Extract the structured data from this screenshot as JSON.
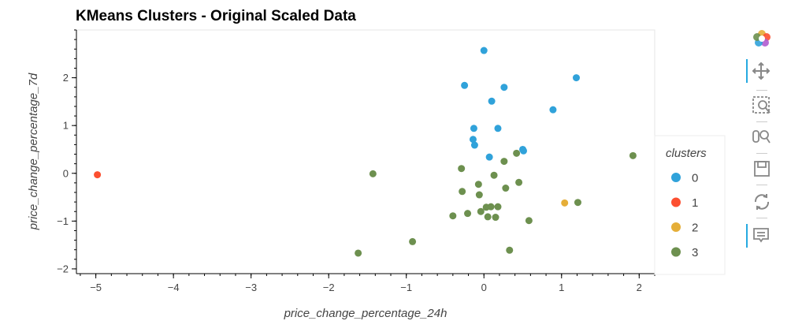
{
  "chart_data": {
    "type": "scatter",
    "title": "KMeans Clusters - Original Scaled Data",
    "xlabel": "price_change_percentage_24h",
    "ylabel": "price_change_percentage_7d",
    "xlim": [
      -5.25,
      2.2
    ],
    "ylim": [
      -2.1,
      3.0
    ],
    "xticks": [
      -5,
      -4,
      -3,
      -2,
      -1,
      0,
      1,
      2
    ],
    "yticks": [
      -2,
      -1,
      0,
      1,
      2
    ],
    "tick_labels_x": [
      "−5",
      "−4",
      "−3",
      "−2",
      "−1",
      "0",
      "1",
      "2"
    ],
    "tick_labels_y": [
      "−2",
      "−1",
      "0",
      "1",
      "2"
    ],
    "grid": false,
    "legend": {
      "title": "clusters",
      "placement": "right"
    },
    "series": [
      {
        "name": "0",
        "color": "#30a2da",
        "points": [
          [
            0.0,
            2.57
          ],
          [
            1.19,
            2.0
          ],
          [
            -0.25,
            1.84
          ],
          [
            0.26,
            1.8
          ],
          [
            0.1,
            1.51
          ],
          [
            0.89,
            1.33
          ],
          [
            -0.13,
            0.94
          ],
          [
            0.18,
            0.94
          ],
          [
            -0.14,
            0.71
          ],
          [
            -0.12,
            0.59
          ],
          [
            0.5,
            0.5
          ],
          [
            0.51,
            0.47
          ],
          [
            0.07,
            0.34
          ]
        ]
      },
      {
        "name": "1",
        "color": "#fc4f30",
        "points": [
          [
            -4.98,
            -0.03
          ]
        ]
      },
      {
        "name": "2",
        "color": "#e5ae38",
        "points": [
          [
            1.04,
            -0.62
          ]
        ]
      },
      {
        "name": "3",
        "color": "#6d904f",
        "points": [
          [
            1.92,
            0.37
          ],
          [
            -1.43,
            -0.01
          ],
          [
            0.42,
            0.42
          ],
          [
            0.26,
            0.25
          ],
          [
            -0.29,
            0.1
          ],
          [
            0.13,
            -0.04
          ],
          [
            -0.07,
            -0.23
          ],
          [
            0.45,
            -0.19
          ],
          [
            -0.28,
            -0.38
          ],
          [
            0.28,
            -0.31
          ],
          [
            -0.06,
            -0.45
          ],
          [
            0.03,
            -0.71
          ],
          [
            0.09,
            -0.7
          ],
          [
            0.18,
            -0.7
          ],
          [
            1.21,
            -0.61
          ],
          [
            -0.04,
            -0.8
          ],
          [
            -0.21,
            -0.84
          ],
          [
            -0.4,
            -0.89
          ],
          [
            0.05,
            -0.91
          ],
          [
            0.15,
            -0.92
          ],
          [
            0.58,
            -0.99
          ],
          [
            -0.92,
            -1.43
          ],
          [
            0.33,
            -1.61
          ],
          [
            -1.62,
            -1.67
          ]
        ]
      }
    ]
  },
  "toolbar": {
    "tools": [
      {
        "name": "bokeh-logo-icon",
        "active": false
      },
      {
        "name": "pan-icon",
        "active": true
      },
      {
        "name": "box-zoom-icon",
        "active": false
      },
      {
        "name": "wheel-zoom-icon",
        "active": false
      },
      {
        "name": "save-icon",
        "active": false
      },
      {
        "name": "reset-icon",
        "active": false
      },
      {
        "name": "hover-icon",
        "active": true
      }
    ]
  }
}
